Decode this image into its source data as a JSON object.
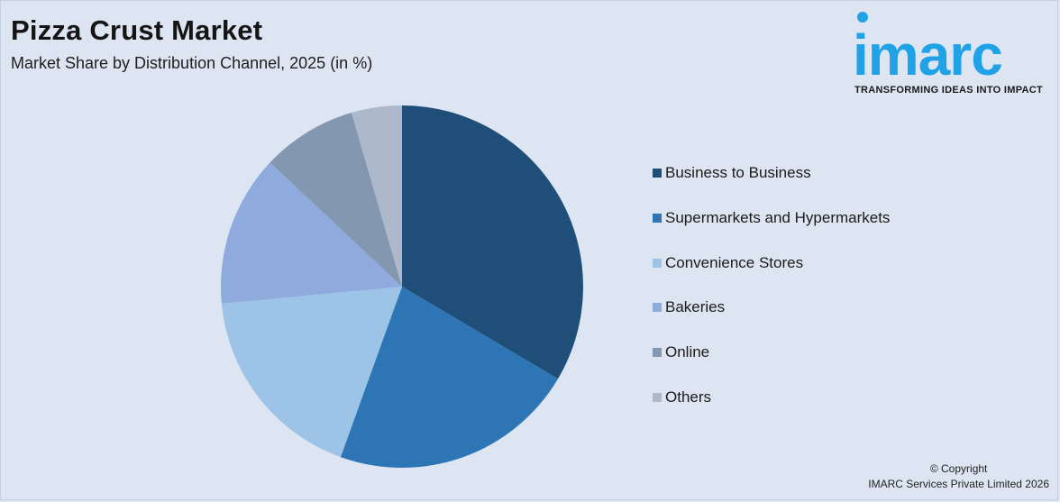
{
  "title": "Pizza Crust Market",
  "subtitle": "Market Share by Distribution Channel, 2025 (in %)",
  "logo": {
    "word": "imarc",
    "tagline": "TRANSFORMING IDEAS INTO IMPACT",
    "color": "#1fa3e6"
  },
  "chart_data": {
    "type": "pie",
    "title": "Pizza Crust Market",
    "subtitle": "Market Share by Distribution Channel, 2025 (in %)",
    "start_angle_deg": 0,
    "direction": "clockwise",
    "legend_position": "right",
    "slices": [
      {
        "label": "Business to Business",
        "value": 33.5,
        "color": "#1f4e79"
      },
      {
        "label": "Supermarkets and Hypermarkets",
        "value": 22.0,
        "color": "#2e75b6"
      },
      {
        "label": "Convenience Stores",
        "value": 18.0,
        "color": "#9dc3e6"
      },
      {
        "label": "Bakeries",
        "value": 13.5,
        "color": "#8faadc"
      },
      {
        "label": "Online",
        "value": 8.5,
        "color": "#8497b0"
      },
      {
        "label": "Others",
        "value": 4.5,
        "color": "#adb9ca"
      }
    ]
  },
  "copyright": {
    "line1": "© Copyright",
    "line2": "IMARC Services Private Limited 2026"
  }
}
